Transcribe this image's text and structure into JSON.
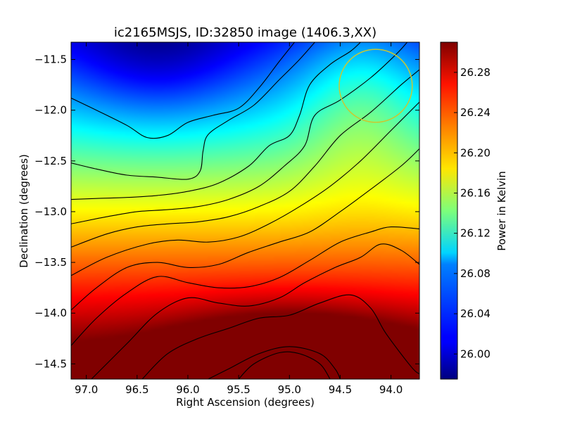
{
  "chart_data": {
    "type": "heatmap",
    "title": "ic2165MSJS, ID:32850 image (1406.3,XX)",
    "xlabel": "Right Ascension (degrees)",
    "ylabel": "Declination (degrees)",
    "colorbar_label": "Power in Kelvin",
    "colormap": "jet",
    "x_inverted": true,
    "xlim": [
      97.15,
      93.72
    ],
    "ylim": [
      -14.65,
      -11.33
    ],
    "x_ticks": [
      97.0,
      96.5,
      96.0,
      95.5,
      95.0,
      94.5,
      94.0
    ],
    "x_tick_labels": [
      "97.0",
      "96.5",
      "96.0",
      "95.5",
      "95.0",
      "94.5",
      "94.0"
    ],
    "y_ticks": [
      -11.5,
      -12.0,
      -12.5,
      -13.0,
      -13.5,
      -14.0,
      -14.5
    ],
    "y_tick_labels": [
      "−11.5",
      "−12.0",
      "−12.5",
      "−13.0",
      "−13.5",
      "−14.0",
      "−14.5"
    ],
    "colorbar_range": [
      25.975,
      26.31
    ],
    "colorbar_ticks": [
      26.0,
      26.04,
      26.08,
      26.12,
      26.16,
      26.2,
      26.24,
      26.28
    ],
    "colorbar_tick_labels": [
      "26.00",
      "26.04",
      "26.08",
      "26.12",
      "26.16",
      "26.20",
      "26.24",
      "26.28"
    ],
    "contours": [
      {
        "level": 26.0,
        "points": [
          [
            97.15,
            -11.88
          ],
          [
            96.9,
            -12.0
          ],
          [
            96.6,
            -12.15
          ],
          [
            96.4,
            -12.27
          ],
          [
            96.2,
            -12.25
          ],
          [
            96.0,
            -12.12
          ],
          [
            95.75,
            -12.05
          ],
          [
            95.5,
            -11.98
          ],
          [
            95.3,
            -11.78
          ],
          [
            95.1,
            -11.52
          ],
          [
            94.95,
            -11.33
          ]
        ]
      },
      {
        "level": 26.04,
        "points": [
          [
            97.15,
            -12.52
          ],
          [
            96.9,
            -12.58
          ],
          [
            96.6,
            -12.64
          ],
          [
            96.3,
            -12.66
          ],
          [
            96.0,
            -12.68
          ],
          [
            95.88,
            -12.6
          ],
          [
            95.85,
            -12.4
          ],
          [
            95.8,
            -12.24
          ],
          [
            95.6,
            -12.1
          ],
          [
            95.35,
            -11.95
          ],
          [
            95.1,
            -11.7
          ],
          [
            94.9,
            -11.5
          ],
          [
            94.75,
            -11.33
          ]
        ]
      },
      {
        "level": 26.08,
        "points": [
          [
            97.15,
            -12.88
          ],
          [
            96.9,
            -12.87
          ],
          [
            96.6,
            -12.86
          ],
          [
            96.3,
            -12.84
          ],
          [
            96.0,
            -12.8
          ],
          [
            95.7,
            -12.72
          ],
          [
            95.4,
            -12.55
          ],
          [
            95.2,
            -12.35
          ],
          [
            95.0,
            -12.25
          ],
          [
            94.9,
            -12.05
          ],
          [
            94.8,
            -11.75
          ],
          [
            94.6,
            -11.55
          ],
          [
            94.4,
            -11.42
          ],
          [
            94.3,
            -11.33
          ]
        ]
      },
      {
        "level": 26.12,
        "points": [
          [
            97.15,
            -13.12
          ],
          [
            96.8,
            -13.05
          ],
          [
            96.5,
            -13.0
          ],
          [
            96.2,
            -12.98
          ],
          [
            95.9,
            -12.95
          ],
          [
            95.6,
            -12.88
          ],
          [
            95.3,
            -12.75
          ],
          [
            95.05,
            -12.55
          ],
          [
            94.85,
            -12.35
          ],
          [
            94.75,
            -12.05
          ],
          [
            94.5,
            -11.9
          ],
          [
            94.2,
            -11.68
          ],
          [
            93.95,
            -11.45
          ],
          [
            93.84,
            -11.33
          ]
        ]
      },
      {
        "level": 26.16,
        "points": [
          [
            97.15,
            -13.35
          ],
          [
            96.8,
            -13.22
          ],
          [
            96.5,
            -13.15
          ],
          [
            96.2,
            -13.12
          ],
          [
            95.9,
            -13.1
          ],
          [
            95.6,
            -13.05
          ],
          [
            95.3,
            -12.95
          ],
          [
            95.0,
            -12.8
          ],
          [
            94.75,
            -12.55
          ],
          [
            94.5,
            -12.25
          ],
          [
            94.2,
            -12.02
          ],
          [
            93.9,
            -11.75
          ],
          [
            93.72,
            -11.6
          ]
        ]
      },
      {
        "level": 26.2,
        "points": [
          [
            97.15,
            -13.63
          ],
          [
            96.8,
            -13.45
          ],
          [
            96.4,
            -13.32
          ],
          [
            96.1,
            -13.28
          ],
          [
            95.8,
            -13.3
          ],
          [
            95.5,
            -13.25
          ],
          [
            95.2,
            -13.12
          ],
          [
            94.9,
            -12.95
          ],
          [
            94.6,
            -12.75
          ],
          [
            94.3,
            -12.5
          ],
          [
            94.0,
            -12.2
          ],
          [
            93.72,
            -11.92
          ]
        ]
      },
      {
        "level": 26.24,
        "points": [
          [
            97.15,
            -13.97
          ],
          [
            96.9,
            -13.75
          ],
          [
            96.6,
            -13.55
          ],
          [
            96.3,
            -13.5
          ],
          [
            96.0,
            -13.55
          ],
          [
            95.7,
            -13.52
          ],
          [
            95.4,
            -13.4
          ],
          [
            95.1,
            -13.3
          ],
          [
            94.8,
            -13.2
          ],
          [
            94.5,
            -13.0
          ],
          [
            94.2,
            -12.78
          ],
          [
            93.9,
            -12.55
          ],
          [
            93.72,
            -12.38
          ]
        ]
      },
      {
        "level": 26.28,
        "points": [
          [
            97.15,
            -14.32
          ],
          [
            96.9,
            -14.05
          ],
          [
            96.6,
            -13.8
          ],
          [
            96.3,
            -13.64
          ],
          [
            96.0,
            -13.7
          ],
          [
            95.7,
            -13.75
          ],
          [
            95.4,
            -13.74
          ],
          [
            95.1,
            -13.65
          ],
          [
            94.8,
            -13.48
          ],
          [
            94.5,
            -13.3
          ],
          [
            94.2,
            -13.2
          ],
          [
            94.0,
            -13.15
          ],
          [
            93.72,
            -13.17
          ]
        ]
      },
      {
        "level": 26.3,
        "points": [
          [
            96.95,
            -14.65
          ],
          [
            96.6,
            -14.3
          ],
          [
            96.3,
            -14.0
          ],
          [
            96.0,
            -13.85
          ],
          [
            95.7,
            -13.9
          ],
          [
            95.4,
            -13.93
          ],
          [
            95.1,
            -13.85
          ],
          [
            94.85,
            -13.7
          ],
          [
            94.55,
            -13.55
          ],
          [
            94.3,
            -13.45
          ],
          [
            94.1,
            -13.32
          ],
          [
            93.9,
            -13.38
          ],
          [
            93.72,
            -13.52
          ]
        ]
      },
      {
        "level": 26.31,
        "points": [
          [
            96.45,
            -14.65
          ],
          [
            96.2,
            -14.4
          ],
          [
            95.9,
            -14.25
          ],
          [
            95.6,
            -14.15
          ],
          [
            95.3,
            -14.05
          ],
          [
            95.0,
            -14.02
          ],
          [
            94.7,
            -13.9
          ],
          [
            94.4,
            -13.82
          ],
          [
            94.2,
            -13.95
          ],
          [
            94.05,
            -14.2
          ],
          [
            93.8,
            -14.53
          ],
          [
            93.72,
            -14.6
          ]
        ]
      },
      {
        "level": 26.315,
        "points": [
          [
            95.8,
            -14.65
          ],
          [
            95.6,
            -14.55
          ],
          [
            95.3,
            -14.4
          ],
          [
            95.0,
            -14.33
          ],
          [
            94.7,
            -14.4
          ],
          [
            94.55,
            -14.55
          ],
          [
            94.5,
            -14.65
          ]
        ]
      },
      {
        "level": 26.318,
        "points": [
          [
            95.5,
            -14.65
          ],
          [
            95.35,
            -14.5
          ],
          [
            95.1,
            -14.39
          ],
          [
            94.9,
            -14.4
          ],
          [
            94.7,
            -14.5
          ],
          [
            94.6,
            -14.65
          ]
        ]
      }
    ],
    "field_model": {
      "base": 26.035,
      "slope_per_deg_dec": -0.095,
      "ridge": [
        26.22,
        95.0,
        -14.6,
        1.1,
        0.55
      ],
      "hollow": [
        -0.05,
        96.3,
        -11.5,
        0.9,
        0.7
      ],
      "bump": [
        0.045,
        94.3,
        -11.8,
        0.6,
        0.9
      ]
    },
    "annotations": [
      {
        "type": "circle",
        "center_ra": 94.15,
        "center_dec": -11.76,
        "radius_deg": 0.36,
        "color": "#c8c832"
      }
    ]
  }
}
